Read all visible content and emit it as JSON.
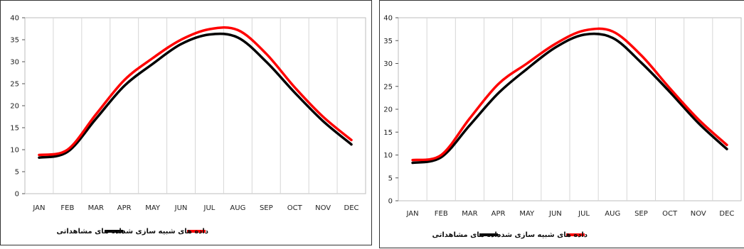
{
  "chart_data": [
    {
      "type": "line",
      "categories": [
        "JAN",
        "FEB",
        "MAR",
        "APR",
        "MAY",
        "JUN",
        "JUL",
        "AUG",
        "SEP",
        "OCT",
        "NOV",
        "DEC"
      ],
      "ylim": [
        0,
        40
      ],
      "yticks": [
        0,
        5,
        10,
        15,
        20,
        25,
        30,
        35,
        40
      ],
      "grid": true,
      "legend_position": "bottom",
      "series": [
        {
          "name": "داده های مشاهداتی",
          "color": "#000000",
          "values": [
            8.2,
            9.5,
            17.0,
            24.5,
            29.5,
            34.0,
            36.2,
            35.5,
            30.0,
            23.0,
            16.5,
            11.2
          ]
        },
        {
          "name": "داده های شبیه سازی شده",
          "color": "#ff0000",
          "values": [
            8.8,
            10.0,
            18.0,
            25.8,
            30.8,
            35.0,
            37.4,
            37.2,
            31.8,
            24.2,
            17.5,
            12.2
          ]
        }
      ]
    },
    {
      "type": "line",
      "categories": [
        "JAN",
        "FEB",
        "MAR",
        "APR",
        "MAY",
        "JUN",
        "JUL",
        "AUG",
        "SEP",
        "OCT",
        "NOV",
        "DEC"
      ],
      "ylim": [
        0,
        40
      ],
      "yticks": [
        0,
        5,
        10,
        15,
        20,
        25,
        30,
        35,
        40
      ],
      "grid": true,
      "legend_position": "bottom",
      "series": [
        {
          "name": "داده های مشاهداتی",
          "color": "#000000",
          "values": [
            8.3,
            9.5,
            16.5,
            23.5,
            28.8,
            33.5,
            36.3,
            35.6,
            30.2,
            23.8,
            17.0,
            11.3
          ]
        },
        {
          "name": "داده های شبیه سازی شده",
          "color": "#ff0000",
          "values": [
            8.9,
            10.0,
            18.0,
            25.5,
            30.0,
            34.3,
            37.2,
            37.0,
            31.8,
            24.6,
            17.8,
            12.2
          ]
        }
      ]
    }
  ]
}
